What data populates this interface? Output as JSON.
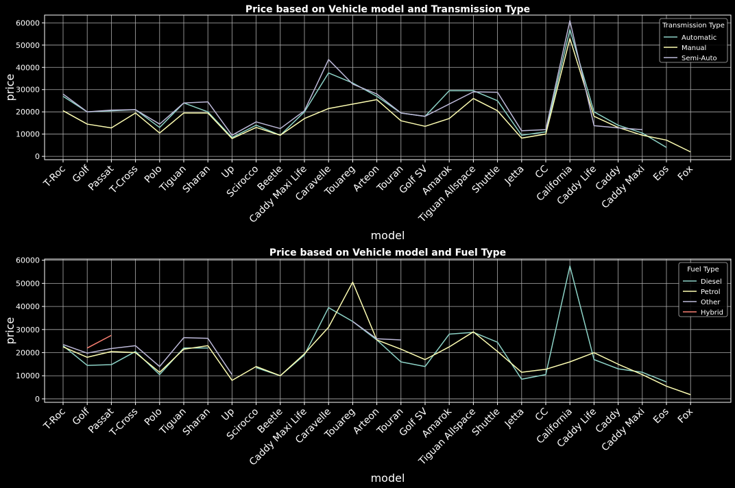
{
  "chart_data": [
    {
      "type": "line",
      "title": "Price based on Vehicle model and Transmission Type",
      "xlabel": "model",
      "ylabel": "price",
      "ylim": [
        -1500,
        63500
      ],
      "yticks": [
        0,
        10000,
        20000,
        30000,
        40000,
        50000,
        60000
      ],
      "grid": true,
      "legend": {
        "title": "Transmission Type",
        "placement": "top-right"
      },
      "categories": [
        "T-Roc",
        "Golf",
        "Passat",
        "T-Cross",
        "Polo",
        "Tiguan",
        "Sharan",
        "Up",
        "Scirocco",
        "Beetle",
        "Caddy Maxi Life",
        "Caravelle",
        "Touareg",
        "Arteon",
        "Touran",
        "Golf SV",
        "Amarok",
        "Tiguan Allspace",
        "Shuttle",
        "Jetta",
        "CC",
        "California",
        "Caddy Life",
        "Caddy",
        "Caddy Maxi",
        "Eos",
        "Fox"
      ],
      "series": [
        {
          "name": "Automatic",
          "color": "#8dd3c7",
          "values": [
            27000,
            20000,
            20500,
            21000,
            13000,
            24000,
            20000,
            8500,
            14000,
            9500,
            20000,
            37500,
            33000,
            27000,
            19500,
            18000,
            29500,
            29500,
            25000,
            9500,
            11000,
            57000,
            20000,
            14000,
            10500,
            4000,
            null
          ]
        },
        {
          "name": "Manual",
          "color": "#ffffb3",
          "values": [
            20500,
            14500,
            12800,
            19500,
            10500,
            19500,
            19500,
            8000,
            13000,
            9500,
            17000,
            21500,
            23500,
            25500,
            16000,
            13500,
            17000,
            26000,
            20500,
            8200,
            10000,
            53000,
            18000,
            13000,
            9500,
            7300,
            2000
          ]
        },
        {
          "name": "Semi-Auto",
          "color": "#bebada",
          "values": [
            28000,
            20000,
            20800,
            21000,
            14500,
            24000,
            24500,
            9500,
            15500,
            12500,
            20500,
            43500,
            32500,
            28000,
            19500,
            18000,
            23500,
            29000,
            28800,
            11500,
            12000,
            61000,
            13800,
            12800,
            12000,
            null,
            null
          ]
        }
      ]
    },
    {
      "type": "line",
      "title": "Price based on Vehicle model and Fuel Type",
      "xlabel": "model",
      "ylabel": "price",
      "ylim": [
        -1500,
        60500
      ],
      "yticks": [
        0,
        10000,
        20000,
        30000,
        40000,
        50000,
        60000
      ],
      "grid": true,
      "legend": {
        "title": "Fuel Type",
        "placement": "top-right"
      },
      "categories": [
        "T-Roc",
        "Golf",
        "Passat",
        "T-Cross",
        "Polo",
        "Tiguan",
        "Sharan",
        "Up",
        "Scirocco",
        "Beetle",
        "Caddy Maxi Life",
        "Caravelle",
        "Touareg",
        "Arteon",
        "Touran",
        "Golf SV",
        "Amarok",
        "Tiguan Allspace",
        "Shuttle",
        "Jetta",
        "CC",
        "California",
        "Caddy Life",
        "Caddy",
        "Caddy Maxi",
        "Eos",
        "Fox"
      ],
      "series": [
        {
          "name": "Diesel",
          "color": "#8dd3c7",
          "values": [
            23000,
            14500,
            14800,
            20500,
            10500,
            22000,
            22000,
            null,
            13500,
            10000,
            19000,
            39500,
            33500,
            25500,
            16000,
            14000,
            28000,
            28800,
            24500,
            8500,
            10500,
            57500,
            17000,
            13000,
            11500,
            7300,
            null
          ]
        },
        {
          "name": "Petrol",
          "color": "#ffffb3",
          "values": [
            22500,
            18000,
            20500,
            20000,
            11500,
            21500,
            23000,
            8000,
            14000,
            10000,
            19500,
            31000,
            50500,
            25500,
            21500,
            17000,
            22500,
            29000,
            20500,
            11500,
            12800,
            16000,
            20000,
            15000,
            10500,
            5500,
            1800
          ]
        },
        {
          "name": "Other",
          "color": "#bebada",
          "values": [
            23500,
            19800,
            21800,
            23000,
            14000,
            26500,
            26200,
            10500,
            null,
            null,
            null,
            null,
            33500,
            26000,
            25500,
            null,
            null,
            null,
            null,
            null,
            null,
            null,
            null,
            null,
            null,
            null,
            null
          ]
        },
        {
          "name": "Hybrid",
          "color": "#fb8072",
          "values": [
            null,
            22000,
            27500,
            null,
            null,
            null,
            null,
            null,
            null,
            null,
            null,
            null,
            null,
            null,
            null,
            null,
            null,
            null,
            null,
            null,
            null,
            null,
            null,
            null,
            null,
            null,
            null
          ]
        }
      ]
    }
  ]
}
